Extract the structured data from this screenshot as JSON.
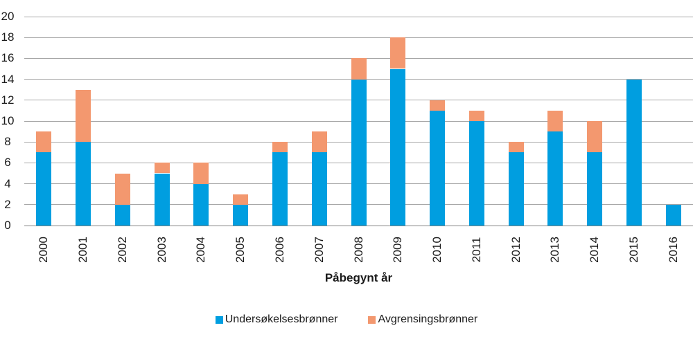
{
  "chart_data": {
    "type": "bar",
    "stacked": true,
    "categories": [
      "2000",
      "2001",
      "2002",
      "2003",
      "2004",
      "2005",
      "2006",
      "2007",
      "2008",
      "2009",
      "2010",
      "2011",
      "2012",
      "2013",
      "2014",
      "2015",
      "2016"
    ],
    "series": [
      {
        "name": "Undersøkelsesbrønner",
        "color": "#009ee0",
        "values": [
          7,
          8,
          2,
          5,
          4,
          2,
          7,
          7,
          14,
          15,
          11,
          10,
          7,
          9,
          7,
          14,
          2
        ]
      },
      {
        "name": "Avgrensingsbrønner",
        "color": "#f3986f",
        "values": [
          2,
          5,
          3,
          1,
          2,
          1,
          1,
          2,
          2,
          3,
          1,
          1,
          1,
          2,
          3,
          0,
          0
        ]
      }
    ],
    "totals": [
      9,
      13,
      5,
      6,
      6,
      3,
      8,
      9,
      16,
      18,
      12,
      11,
      8,
      11,
      10,
      14,
      2
    ],
    "title": "",
    "xlabel": "Påbegynt år",
    "ylabel": "",
    "ylim": [
      0,
      20
    ],
    "ytick_step": 2,
    "grid": true,
    "legend_position": "bottom",
    "colors": {
      "gridline": "#a6a6a6",
      "axis_line": "#7f7f7f",
      "text": "#1a1a1a",
      "background": "#ffffff"
    }
  }
}
